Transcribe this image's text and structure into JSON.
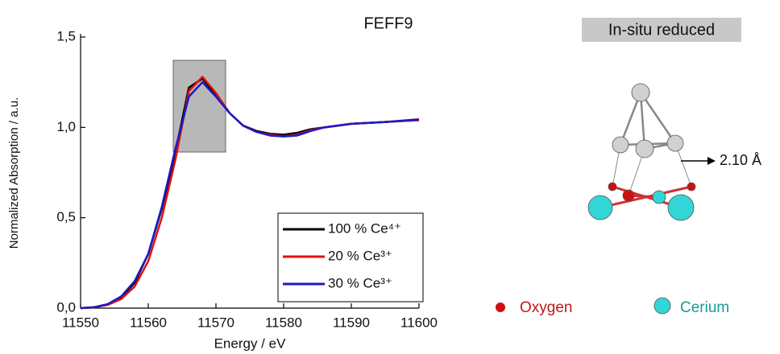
{
  "chart_data": {
    "type": "line",
    "title": "FEFF9",
    "x_label": "Energy / eV",
    "y_label": "Normalized Absorption / a.u.",
    "x": [
      11550,
      11552,
      11554,
      11556,
      11558,
      11560,
      11562,
      11564,
      11566,
      11568,
      11570,
      11572,
      11574,
      11576,
      11578,
      11580,
      11582,
      11584,
      11586,
      11590,
      11595,
      11600
    ],
    "series": [
      {
        "name": "100 % Ce⁴⁺",
        "color": "#000000",
        "values": [
          0,
          0.005,
          0.02,
          0.06,
          0.14,
          0.3,
          0.55,
          0.86,
          1.22,
          1.27,
          1.18,
          1.08,
          1.01,
          0.98,
          0.965,
          0.96,
          0.97,
          0.99,
          1.0,
          1.02,
          1.03,
          1.04
        ]
      },
      {
        "name": "20 % Ce³⁺",
        "color": "#e01010",
        "values": [
          0,
          0.004,
          0.018,
          0.05,
          0.12,
          0.26,
          0.5,
          0.82,
          1.2,
          1.28,
          1.19,
          1.08,
          1.01,
          0.975,
          0.96,
          0.95,
          0.96,
          0.985,
          1.0,
          1.02,
          1.03,
          1.04
        ]
      },
      {
        "name": "30 % Ce³⁺",
        "color": "#1a1ac8",
        "values": [
          0,
          0.005,
          0.022,
          0.065,
          0.15,
          0.3,
          0.56,
          0.88,
          1.17,
          1.25,
          1.17,
          1.08,
          1.01,
          0.975,
          0.955,
          0.95,
          0.955,
          0.98,
          1.0,
          1.02,
          1.03,
          1.045
        ]
      }
    ],
    "xlim": [
      11550,
      11600
    ],
    "xticks": [
      11550,
      11560,
      11570,
      11580,
      11590,
      11600
    ],
    "ylim": [
      0,
      1.5
    ],
    "yticks": [
      {
        "value": 0,
        "label": "0,0"
      },
      {
        "value": 0.5,
        "label": "0,5"
      },
      {
        "value": 1.0,
        "label": "1,0"
      },
      {
        "value": 1.5,
        "label": "1,5"
      }
    ],
    "legend": "lower right",
    "annotations": [
      "In-situ reduced",
      "2.10 Å",
      "Oxygen",
      "Cerium"
    ]
  }
}
